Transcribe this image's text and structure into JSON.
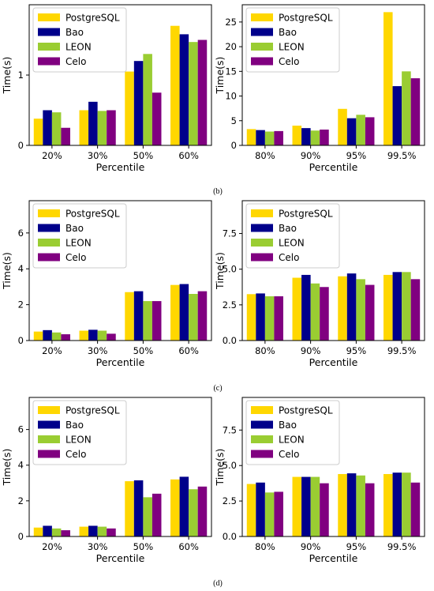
{
  "figure": {
    "captions": [
      "(b)",
      "(c)",
      "(d)"
    ]
  },
  "legend_colors": {
    "PostgreSQL": "#FFD700",
    "Bao": "#00008B",
    "LEON": "#9ACD32",
    "Celo": "#800080"
  },
  "chart_data": [
    {
      "type": "bar",
      "categories": [
        "20%",
        "30%",
        "50%",
        "60%"
      ],
      "series": [
        {
          "name": "PostgreSQL",
          "values": [
            0.38,
            0.5,
            1.05,
            1.7
          ]
        },
        {
          "name": "Bao",
          "values": [
            0.5,
            0.62,
            1.2,
            1.58
          ]
        },
        {
          "name": "LEON",
          "values": [
            0.47,
            0.49,
            1.3,
            1.47
          ]
        },
        {
          "name": "Celo",
          "values": [
            0.25,
            0.5,
            0.75,
            1.5
          ]
        }
      ],
      "xlabel": "Percentile",
      "ylabel": "Time(s)",
      "ylim": [
        0,
        2.0
      ],
      "yticks": [
        0,
        1
      ],
      "legend": "top-left",
      "grid": false
    },
    {
      "type": "bar",
      "categories": [
        "80%",
        "90%",
        "95%",
        "99.5%"
      ],
      "series": [
        {
          "name": "PostgreSQL",
          "values": [
            3.3,
            4.0,
            7.4,
            27.0
          ]
        },
        {
          "name": "Bao",
          "values": [
            3.1,
            3.5,
            5.5,
            12.0
          ]
        },
        {
          "name": "LEON",
          "values": [
            2.8,
            3.0,
            6.2,
            15.0
          ]
        },
        {
          "name": "Celo",
          "values": [
            2.9,
            3.2,
            5.7,
            13.6
          ]
        }
      ],
      "xlabel": "Percentile",
      "ylabel": "Time(s)",
      "ylim": [
        0,
        28.5
      ],
      "yticks": [
        0,
        5,
        10,
        15,
        20,
        25
      ],
      "legend": "top-left",
      "grid": false
    },
    {
      "type": "bar",
      "categories": [
        "20%",
        "30%",
        "50%",
        "60%"
      ],
      "series": [
        {
          "name": "PostgreSQL",
          "values": [
            0.5,
            0.55,
            2.7,
            3.1
          ]
        },
        {
          "name": "Bao",
          "values": [
            0.58,
            0.6,
            2.75,
            3.15
          ]
        },
        {
          "name": "LEON",
          "values": [
            0.45,
            0.55,
            2.2,
            2.6
          ]
        },
        {
          "name": "Celo",
          "values": [
            0.35,
            0.38,
            2.2,
            2.75
          ]
        }
      ],
      "xlabel": "Percentile",
      "ylabel": "Time(s)",
      "ylim": [
        0,
        7.8
      ],
      "yticks": [
        0,
        2,
        4,
        6
      ],
      "legend": "top-left",
      "grid": false
    },
    {
      "type": "bar",
      "categories": [
        "80%",
        "90%",
        "95%",
        "99.5%"
      ],
      "series": [
        {
          "name": "PostgreSQL",
          "values": [
            3.25,
            4.4,
            4.5,
            4.6
          ]
        },
        {
          "name": "Bao",
          "values": [
            3.3,
            4.6,
            4.7,
            4.8
          ]
        },
        {
          "name": "LEON",
          "values": [
            3.1,
            4.0,
            4.3,
            4.8
          ]
        },
        {
          "name": "Celo",
          "values": [
            3.1,
            3.75,
            3.9,
            4.3
          ]
        }
      ],
      "xlabel": "Percentile",
      "ylabel": "Time(s)",
      "ylim": [
        0,
        9.8
      ],
      "yticks": [
        "0.0",
        "2.5",
        "5.0",
        "7.5"
      ],
      "legend": "top-left",
      "grid": false
    },
    {
      "type": "bar",
      "categories": [
        "20%",
        "30%",
        "50%",
        "60%"
      ],
      "series": [
        {
          "name": "PostgreSQL",
          "values": [
            0.5,
            0.55,
            3.1,
            3.2
          ]
        },
        {
          "name": "Bao",
          "values": [
            0.6,
            0.6,
            3.15,
            3.35
          ]
        },
        {
          "name": "LEON",
          "values": [
            0.45,
            0.55,
            2.2,
            2.65
          ]
        },
        {
          "name": "Celo",
          "values": [
            0.35,
            0.45,
            2.4,
            2.8
          ]
        }
      ],
      "xlabel": "Percentile",
      "ylabel": "Time(s)",
      "ylim": [
        0,
        7.8
      ],
      "yticks": [
        0,
        2,
        4,
        6
      ],
      "legend": "top-left",
      "grid": false
    },
    {
      "type": "bar",
      "categories": [
        "80%",
        "90%",
        "95%",
        "99.5%"
      ],
      "series": [
        {
          "name": "PostgreSQL",
          "values": [
            3.7,
            4.2,
            4.4,
            4.4
          ]
        },
        {
          "name": "Bao",
          "values": [
            3.8,
            4.2,
            4.45,
            4.5
          ]
        },
        {
          "name": "LEON",
          "values": [
            3.1,
            4.2,
            4.3,
            4.5
          ]
        },
        {
          "name": "Celo",
          "values": [
            3.15,
            3.75,
            3.75,
            3.8
          ]
        }
      ],
      "xlabel": "Percentile",
      "ylabel": "Time(s)",
      "ylim": [
        0,
        9.8
      ],
      "yticks": [
        "0.0",
        "2.5",
        "5.0",
        "7.5"
      ],
      "legend": "top-left",
      "grid": false
    }
  ]
}
